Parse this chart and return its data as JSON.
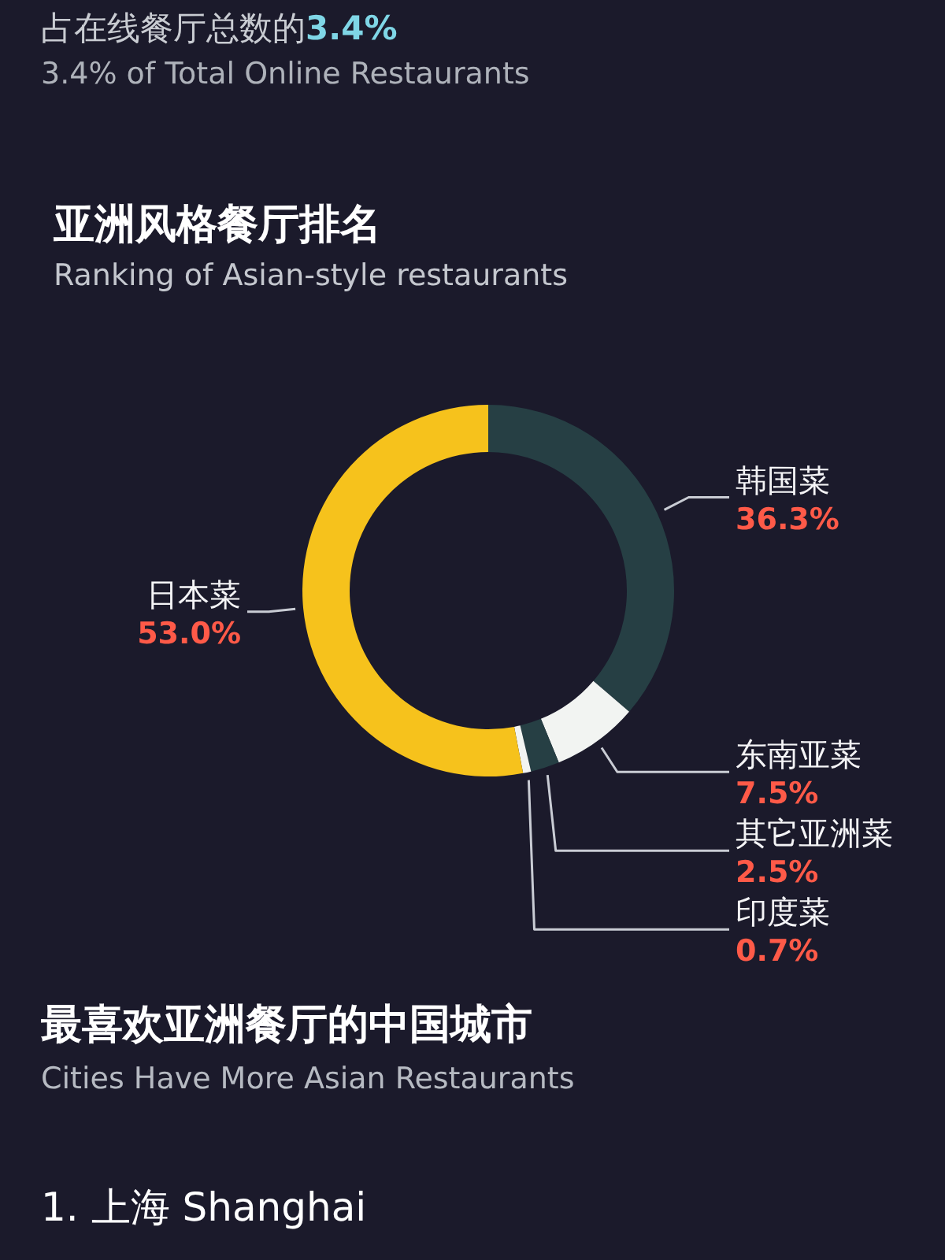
{
  "chart_data": {
    "type": "donut",
    "title": "亚洲风格餐厅排名",
    "subtitle": "Ranking of Asian-style restaurants",
    "categories": [
      "韩国菜",
      "东南亚菜",
      "其它亚洲菜",
      "印度菜",
      "日本菜"
    ],
    "values": [
      36.3,
      7.5,
      2.5,
      0.7,
      53.0
    ],
    "colors": [
      "#263f44",
      "#f2f4f2",
      "#263f44",
      "#f2f4f2",
      "#f6c21c"
    ],
    "value_labels": [
      "36.3%",
      "7.5%",
      "2.5%",
      "0.7%",
      "53.0%"
    ],
    "annotations": [
      "占在线餐厅总数的3.4%",
      "3.4% of Total Online Restaurants",
      "最喜欢亚洲餐厅的中国城市",
      "Cities Have More Asian Restaurants",
      "1. 上海 Shanghai"
    ]
  }
}
